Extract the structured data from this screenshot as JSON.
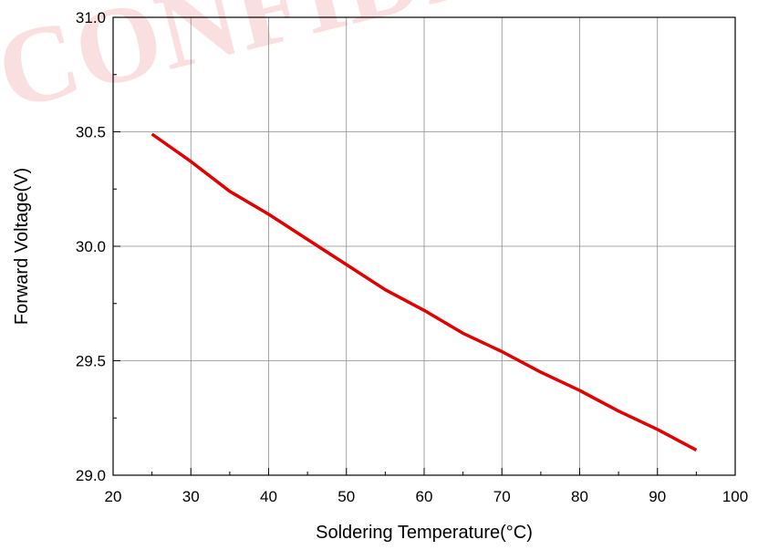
{
  "watermark": {
    "text": "CONFIDENTIAL",
    "color": "#f2b8b8"
  },
  "chart_data": {
    "type": "line",
    "title": "",
    "xlabel": "Soldering Temperature(°C)",
    "ylabel": "Forward Voltage(V)",
    "xlim": [
      20,
      100
    ],
    "ylim": [
      29.0,
      31.0
    ],
    "xticks": [
      20,
      30,
      40,
      50,
      60,
      70,
      80,
      90,
      100
    ],
    "xtick_labels": [
      "20",
      "30",
      "40",
      "50",
      "60",
      "70",
      "80",
      "90",
      "100"
    ],
    "yticks": [
      29.0,
      29.5,
      30.0,
      30.5,
      31.0
    ],
    "ytick_labels": [
      "29.0",
      "29.5",
      "30.0",
      "30.5",
      "31.0"
    ],
    "grid": true,
    "legend": "none",
    "series": [
      {
        "color": "#e00000",
        "x": [
          25,
          30,
          35,
          40,
          45,
          50,
          55,
          60,
          65,
          70,
          75,
          80,
          85,
          90,
          95
        ],
        "y": [
          30.49,
          30.37,
          30.24,
          30.14,
          30.03,
          29.92,
          29.81,
          29.72,
          29.62,
          29.54,
          29.45,
          29.37,
          29.28,
          29.2,
          29.11
        ]
      }
    ]
  }
}
